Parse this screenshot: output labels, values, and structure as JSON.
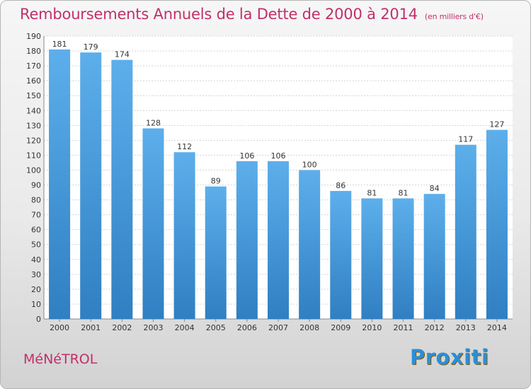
{
  "chart_data": {
    "type": "bar",
    "title": "Remboursements Annuels de la Dette de 2000 à 2014",
    "unit": "(en milliers d'€)",
    "categories": [
      "2000",
      "2001",
      "2002",
      "2003",
      "2004",
      "2005",
      "2006",
      "2007",
      "2008",
      "2009",
      "2010",
      "2011",
      "2012",
      "2013",
      "2014"
    ],
    "values": [
      181,
      179,
      174,
      128,
      112,
      89,
      106,
      106,
      100,
      86,
      81,
      81,
      84,
      117,
      127
    ],
    "ylim": [
      0,
      190
    ],
    "ytick_step": 10,
    "grid": true,
    "colors": {
      "bar_light": "#5dafeb",
      "bar_dark": "#2f7fc2",
      "accent": "#c0306a"
    }
  },
  "footer": {
    "city": "MéNéTROL",
    "brand": "Proxiti"
  }
}
